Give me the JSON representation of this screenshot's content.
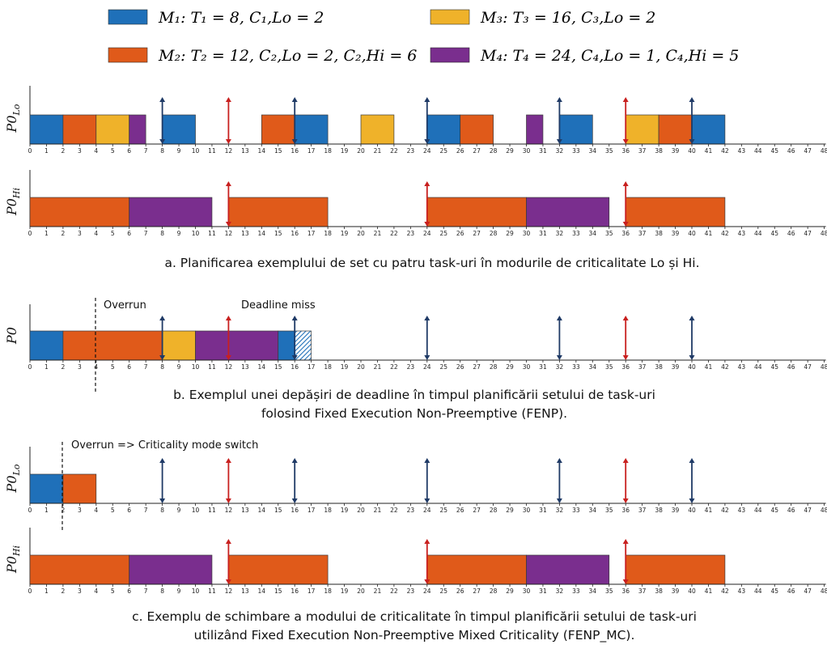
{
  "colors": {
    "M1": "#1f70b9",
    "M2": "#e05a1a",
    "M3": "#efb22a",
    "M4": "#7a2e8e",
    "arrow_blue": "#1f3a66",
    "arrow_red": "#c8201f"
  },
  "legend": [
    {
      "task": "M1",
      "text": "M₁: T₁ = 8, C₁,Lo = 2"
    },
    {
      "task": "M3",
      "text": "M₃: T₃ = 16, C₃,Lo = 2"
    },
    {
      "task": "M2",
      "text": "M₂: T₂ = 12, C₂,Lo = 2, C₂,Hi = 6"
    },
    {
      "task": "M4",
      "text": "M₄: T₄ = 24, C₄,Lo = 1, C₄,Hi = 5"
    }
  ],
  "axis": {
    "min": 0,
    "max": 48
  },
  "timelines": [
    {
      "id": "a-lo",
      "label": "P0",
      "sub": "Lo",
      "blocks": [
        {
          "t": "M1",
          "s": 0,
          "e": 2
        },
        {
          "t": "M2",
          "s": 2,
          "e": 4
        },
        {
          "t": "M3",
          "s": 4,
          "e": 6
        },
        {
          "t": "M4",
          "s": 6,
          "e": 7
        },
        {
          "t": "M1",
          "s": 8,
          "e": 10
        },
        {
          "t": "M2",
          "s": 14,
          "e": 16
        },
        {
          "t": "M1",
          "s": 16,
          "e": 18
        },
        {
          "t": "M3",
          "s": 20,
          "e": 22
        },
        {
          "t": "M1",
          "s": 24,
          "e": 26
        },
        {
          "t": "M2",
          "s": 26,
          "e": 28
        },
        {
          "t": "M4",
          "s": 30,
          "e": 31
        },
        {
          "t": "M1",
          "s": 32,
          "e": 34
        },
        {
          "t": "M3",
          "s": 36,
          "e": 38
        },
        {
          "t": "M2",
          "s": 38,
          "e": 40
        },
        {
          "t": "M1",
          "s": 40,
          "e": 42
        }
      ],
      "arrows": [
        {
          "t": 8,
          "c": "blue"
        },
        {
          "t": 12,
          "c": "red"
        },
        {
          "t": 16,
          "c": "blue"
        },
        {
          "t": 24,
          "c": "blue"
        },
        {
          "t": 32,
          "c": "blue"
        },
        {
          "t": 36,
          "c": "red"
        },
        {
          "t": 40,
          "c": "blue"
        }
      ]
    },
    {
      "id": "a-hi",
      "label": "P0",
      "sub": "Hi",
      "blocks": [
        {
          "t": "M2",
          "s": 0,
          "e": 6
        },
        {
          "t": "M4",
          "s": 6,
          "e": 11
        },
        {
          "t": "M2",
          "s": 12,
          "e": 18
        },
        {
          "t": "M2",
          "s": 24,
          "e": 30
        },
        {
          "t": "M4",
          "s": 30,
          "e": 35
        },
        {
          "t": "M2",
          "s": 36,
          "e": 42
        }
      ],
      "arrows": [
        {
          "t": 12,
          "c": "red"
        },
        {
          "t": 24,
          "c": "red"
        },
        {
          "t": 36,
          "c": "red"
        }
      ]
    },
    {
      "id": "b",
      "label": "P0",
      "sub": "",
      "blocks": [
        {
          "t": "M1",
          "s": 0,
          "e": 2
        },
        {
          "t": "M2",
          "s": 2,
          "e": 8
        },
        {
          "t": "M3",
          "s": 8,
          "e": 10
        },
        {
          "t": "M4",
          "s": 10,
          "e": 15
        },
        {
          "t": "M1",
          "s": 15,
          "e": 16
        },
        {
          "t": "M1",
          "s": 16,
          "e": 17,
          "hatched": true
        }
      ],
      "arrows": [
        {
          "t": 8,
          "c": "blue"
        },
        {
          "t": 12,
          "c": "red"
        },
        {
          "t": 16,
          "c": "blue"
        },
        {
          "t": 24,
          "c": "blue"
        },
        {
          "t": 32,
          "c": "blue"
        },
        {
          "t": 36,
          "c": "red"
        },
        {
          "t": 40,
          "c": "blue"
        }
      ]
    },
    {
      "id": "c-lo",
      "label": "P0",
      "sub": "Lo",
      "blocks": [
        {
          "t": "M1",
          "s": 0,
          "e": 2
        },
        {
          "t": "M2",
          "s": 2,
          "e": 4
        }
      ],
      "arrows": [
        {
          "t": 8,
          "c": "blue"
        },
        {
          "t": 12,
          "c": "red"
        },
        {
          "t": 16,
          "c": "blue"
        },
        {
          "t": 24,
          "c": "blue"
        },
        {
          "t": 32,
          "c": "blue"
        },
        {
          "t": 36,
          "c": "red"
        },
        {
          "t": 40,
          "c": "blue"
        }
      ]
    },
    {
      "id": "c-hi",
      "label": "P0",
      "sub": "Hi",
      "blocks": [
        {
          "t": "M2",
          "s": 0,
          "e": 6
        },
        {
          "t": "M4",
          "s": 6,
          "e": 11
        },
        {
          "t": "M2",
          "s": 12,
          "e": 18
        },
        {
          "t": "M2",
          "s": 24,
          "e": 30
        },
        {
          "t": "M4",
          "s": 30,
          "e": 35
        },
        {
          "t": "M2",
          "s": 36,
          "e": 42
        }
      ],
      "arrows": [
        {
          "t": 12,
          "c": "red"
        },
        {
          "t": 24,
          "c": "red"
        },
        {
          "t": 36,
          "c": "red"
        }
      ]
    }
  ],
  "markers": [
    {
      "id": "overrun-b",
      "t": 4,
      "text": "Overrun"
    },
    {
      "id": "deadline-miss-b",
      "text": "Deadline miss"
    },
    {
      "id": "mode-switch-c",
      "t": 2,
      "text": "Overrun => Criticality mode switch"
    }
  ],
  "captions": {
    "a": "a. Planificarea exemplului de set cu patru task-uri în modurile de criticalitate Lo și Hi.",
    "b1": "b. Exemplul unei depășiri de deadline în timpul planificării setului de task-uri",
    "b2": "folosind Fixed Execution Non-Preemptive (FENP).",
    "c1": "c. Exemplu de schimbare a modului de criticalitate în timpul planificării setului de task-uri",
    "c2": "utilizând Fixed Execution Non-Preemptive Mixed Criticality (FENP_MC)."
  }
}
